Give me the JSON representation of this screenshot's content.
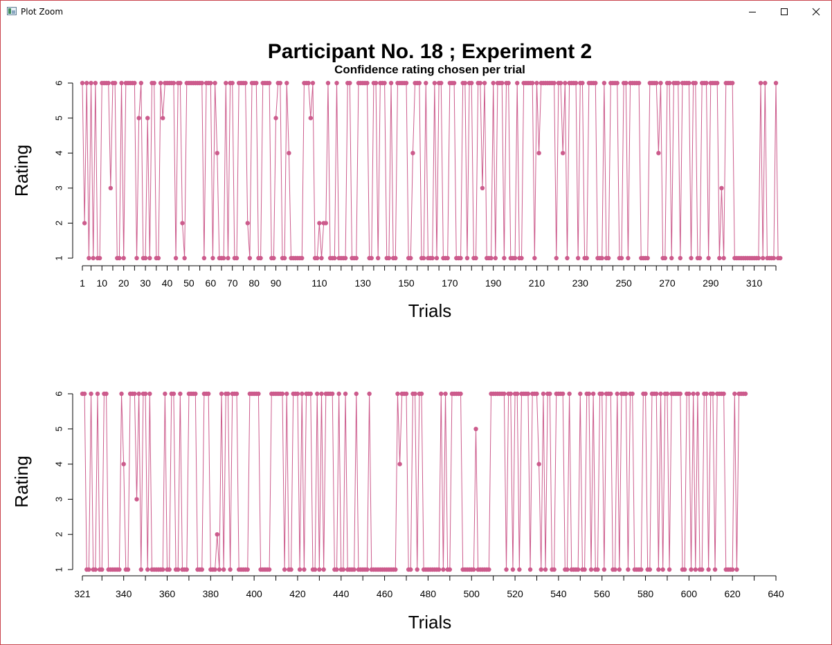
{
  "window": {
    "title": "Plot Zoom",
    "controls": [
      "minimize-icon",
      "maximize-icon",
      "close-icon"
    ]
  },
  "plot": {
    "title": "Participant No. 18 ; Experiment 2",
    "subtitle": "Confidence rating chosen per trial"
  },
  "colors": {
    "series": "#cc5b8c",
    "border": "#c9434b"
  },
  "chart_data": [
    {
      "type": "line",
      "title": "Participant No. 18 ; Experiment 2",
      "subtitle": "Confidence rating chosen per trial",
      "xlabel": "Trials",
      "ylabel": "Rating",
      "xlim": [
        1,
        320
      ],
      "ylim": [
        1,
        6
      ],
      "x_ticks": [
        1,
        10,
        20,
        30,
        40,
        50,
        60,
        70,
        80,
        90,
        110,
        130,
        150,
        170,
        190,
        210,
        230,
        250,
        270,
        290,
        310
      ],
      "y_ticks": [
        1,
        2,
        3,
        4,
        5,
        6
      ],
      "x_start": 1,
      "values": [
        6,
        2,
        6,
        1,
        6,
        1,
        6,
        1,
        1,
        6,
        6,
        6,
        6,
        3,
        6,
        6,
        1,
        1,
        6,
        1,
        6,
        6,
        6,
        6,
        6,
        1,
        5,
        6,
        1,
        1,
        5,
        1,
        6,
        6,
        1,
        1,
        6,
        5,
        6,
        6,
        6,
        6,
        6,
        1,
        6,
        6,
        2,
        1,
        6,
        6,
        6,
        6,
        6,
        6,
        6,
        6,
        1,
        6,
        6,
        6,
        1,
        6,
        4,
        1,
        1,
        1,
        6,
        1,
        6,
        6,
        1,
        1,
        6,
        6,
        6,
        6,
        2,
        1,
        6,
        6,
        6,
        1,
        1,
        6,
        6,
        6,
        6,
        1,
        1,
        5,
        6,
        6,
        1,
        1,
        6,
        4,
        1,
        1,
        1,
        1,
        1,
        1,
        6,
        6,
        6,
        5,
        6,
        1,
        1,
        2,
        1,
        2,
        2,
        6,
        1,
        1,
        1,
        6,
        1,
        1,
        1,
        1,
        6,
        6,
        1,
        1,
        1,
        6,
        6,
        6,
        6,
        6,
        1,
        1,
        6,
        6,
        1,
        6,
        6,
        6,
        1,
        1,
        6,
        1,
        1,
        6,
        6,
        6,
        6,
        6,
        1,
        1,
        4,
        6,
        6,
        6,
        1,
        1,
        6,
        1,
        1,
        1,
        6,
        1,
        6,
        6,
        1,
        1,
        1,
        6,
        6,
        6,
        1,
        1,
        1,
        6,
        6,
        1,
        6,
        6,
        1,
        1,
        6,
        6,
        3,
        6,
        1,
        1,
        1,
        6,
        1,
        6,
        6,
        6,
        1,
        6,
        6,
        1,
        1,
        1,
        6,
        1,
        1,
        6,
        6,
        6,
        6,
        6,
        1,
        6,
        4,
        6,
        6,
        6,
        6,
        6,
        6,
        6,
        1,
        6,
        6,
        4,
        6,
        1,
        6,
        6,
        6,
        6,
        1,
        6,
        6,
        1,
        1,
        6,
        6,
        6,
        6,
        1,
        1,
        1,
        6,
        1,
        1,
        6,
        6,
        6,
        6,
        1,
        1,
        6,
        6,
        1,
        6,
        6,
        6,
        6,
        6,
        1,
        1,
        1,
        1,
        6,
        6,
        6,
        6,
        4,
        6,
        1,
        1,
        6,
        6,
        1,
        6,
        6,
        6,
        1,
        6,
        6,
        6,
        6,
        1,
        6,
        6,
        1,
        1,
        6,
        6,
        6,
        1,
        6,
        6,
        6,
        6,
        1,
        3,
        1,
        6,
        6,
        6,
        6,
        1,
        1,
        1,
        1,
        1,
        1,
        1,
        1,
        1,
        1,
        1,
        1,
        6,
        1,
        6,
        1,
        1,
        1,
        1,
        6,
        1,
        1
      ]
    },
    {
      "type": "line",
      "xlabel": "Trials",
      "ylabel": "Rating",
      "xlim": [
        321,
        640
      ],
      "ylim": [
        1,
        6
      ],
      "x_ticks": [
        321,
        340,
        360,
        380,
        400,
        420,
        440,
        460,
        480,
        500,
        520,
        540,
        560,
        580,
        600,
        620,
        640
      ],
      "y_ticks": [
        1,
        2,
        3,
        4,
        5,
        6
      ],
      "x_start": 321,
      "values": [
        6,
        6,
        1,
        1,
        6,
        1,
        1,
        6,
        1,
        1,
        6,
        6,
        1,
        1,
        1,
        1,
        1,
        1,
        6,
        4,
        1,
        1,
        6,
        6,
        6,
        3,
        6,
        1,
        6,
        6,
        1,
        6,
        1,
        1,
        1,
        1,
        1,
        1,
        6,
        1,
        1,
        6,
        6,
        1,
        1,
        6,
        1,
        1,
        1,
        6,
        6,
        6,
        6,
        1,
        1,
        1,
        6,
        6,
        6,
        1,
        1,
        1,
        2,
        1,
        6,
        1,
        6,
        6,
        1,
        6,
        6,
        6,
        1,
        1,
        1,
        1,
        1,
        6,
        6,
        6,
        6,
        6,
        1,
        1,
        1,
        1,
        1,
        6,
        6,
        6,
        6,
        6,
        6,
        1,
        6,
        1,
        1,
        6,
        6,
        6,
        1,
        6,
        1,
        6,
        6,
        6,
        1,
        1,
        6,
        1,
        6,
        1,
        6,
        6,
        6,
        6,
        1,
        1,
        6,
        1,
        1,
        6,
        1,
        1,
        1,
        1,
        6,
        1,
        1,
        1,
        1,
        1,
        6,
        1,
        1,
        1,
        1,
        1,
        1,
        1,
        1,
        1,
        1,
        1,
        1,
        6,
        4,
        6,
        6,
        6,
        1,
        1,
        6,
        6,
        1,
        6,
        6,
        1,
        1,
        1,
        1,
        1,
        1,
        1,
        1,
        6,
        1,
        6,
        1,
        1,
        6,
        6,
        6,
        6,
        6,
        1,
        1,
        1,
        1,
        1,
        1,
        5,
        1,
        1,
        1,
        1,
        1,
        1,
        6,
        6,
        6,
        6,
        6,
        6,
        6,
        1,
        6,
        6,
        1,
        6,
        6,
        1,
        6,
        6,
        6,
        6,
        1,
        6,
        6,
        6,
        4,
        1,
        6,
        1,
        6,
        6,
        1,
        1,
        6,
        6,
        6,
        6,
        1,
        1,
        6,
        1,
        1,
        1,
        1,
        6,
        1,
        1,
        6,
        6,
        1,
        6,
        1,
        1,
        6,
        6,
        1,
        6,
        6,
        6,
        1,
        1,
        6,
        1,
        6,
        6,
        6,
        1,
        6,
        6,
        1,
        1,
        1,
        1,
        6,
        6,
        1,
        1,
        6,
        6,
        6,
        1,
        6,
        1,
        6,
        6,
        1,
        6,
        6,
        6,
        6,
        6,
        1,
        1,
        6,
        6,
        1,
        6,
        1,
        6,
        1,
        1,
        6,
        6,
        1,
        6,
        6,
        1,
        6,
        6,
        6,
        6,
        1,
        1,
        1,
        1,
        6,
        1,
        6,
        6,
        6,
        6
      ]
    }
  ]
}
